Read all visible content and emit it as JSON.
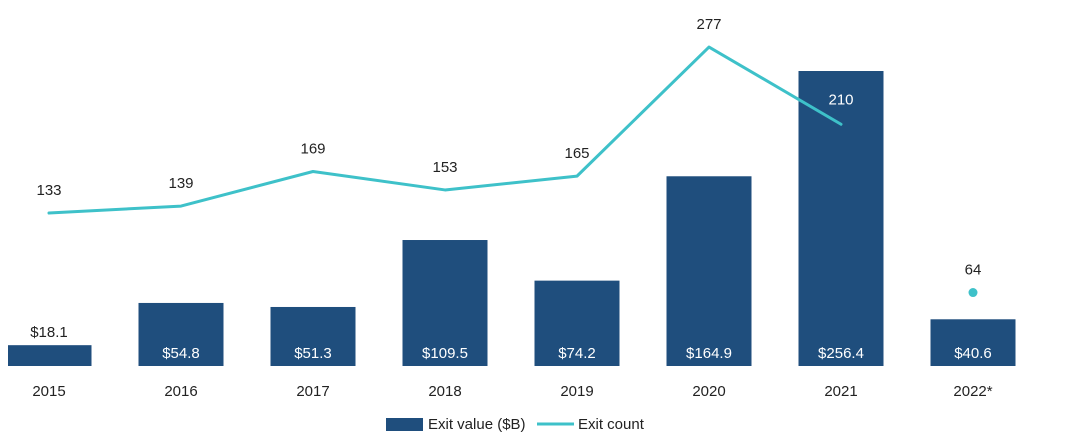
{
  "chart_data": {
    "type": "bar",
    "categories": [
      "2015",
      "2016",
      "2017",
      "2018",
      "2019",
      "2020",
      "2021",
      "2022*"
    ],
    "series": [
      {
        "name": "Exit value ($B)",
        "type": "bar",
        "values": [
          18.1,
          54.8,
          51.3,
          109.5,
          74.2,
          164.9,
          256.4,
          40.6
        ],
        "labels": [
          "$18.1",
          "$54.8",
          "$51.3",
          "$109.5",
          "$74.2",
          "$164.9",
          "$256.4",
          "$40.6"
        ]
      },
      {
        "name": "Exit count",
        "type": "line",
        "values": [
          133,
          139,
          169,
          153,
          165,
          277,
          210,
          64
        ],
        "labels": [
          "133",
          "139",
          "169",
          "153",
          "165",
          "277",
          "210",
          "64"
        ]
      }
    ],
    "colors": {
      "bar": "#1f4e7d",
      "line": "#3ec1c9"
    }
  }
}
